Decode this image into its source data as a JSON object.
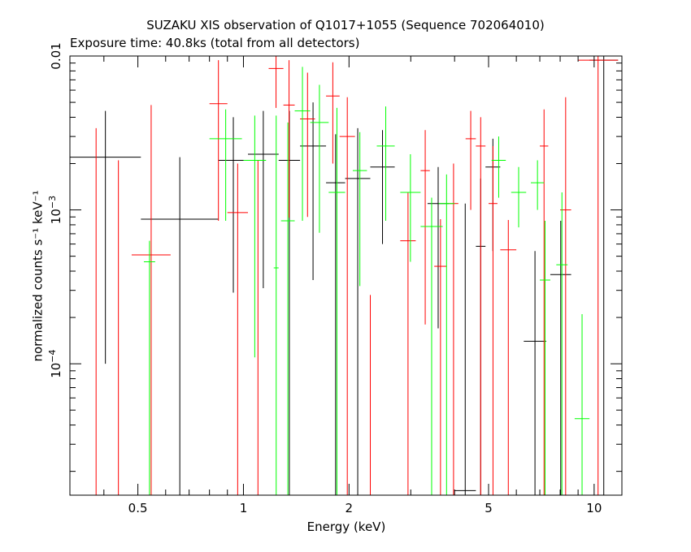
{
  "chart_data": {
    "type": "scatter",
    "title": "SUZAKU XIS observation of Q1017+1055 (Sequence 702064010)",
    "subtitle": "Exposure time: 40.8ks (total from all detectors)",
    "xlabel": "Energy (keV)",
    "ylabel": "normalized counts s⁻¹ keV⁻¹",
    "xscale": "log",
    "yscale": "log",
    "xlim": [
      0.32,
      12.0
    ],
    "ylim": [
      1.4e-05,
      0.01
    ],
    "grid": false,
    "x_ticks": [
      {
        "value": 0.5,
        "label": "0.5"
      },
      {
        "value": 1,
        "label": "1"
      },
      {
        "value": 2,
        "label": "2"
      },
      {
        "value": 5,
        "label": "5"
      },
      {
        "value": 10,
        "label": "10"
      }
    ],
    "y_ticks": [
      {
        "value": 0.0001,
        "base": "10",
        "exp": "−4"
      },
      {
        "value": 0.001,
        "base": "10",
        "exp": "−3"
      },
      {
        "value": 0.01,
        "label": "0.01"
      }
    ],
    "colors": {
      "series_0": "#000000",
      "series_1": "#ff0000",
      "series_2": "#00ff00"
    },
    "series": [
      {
        "color": "#000000",
        "points": [
          [
            0.32,
            0.51,
            0.0022,
            0.0001,
            0.0044
          ],
          [
            0.51,
            0.85,
            0.00087,
            1.4e-05,
            0.0022
          ],
          [
            0.85,
            1.03,
            0.0021,
            0.00029,
            0.004
          ],
          [
            1.03,
            1.26,
            0.0023,
            0.00031,
            0.0044
          ],
          [
            1.26,
            1.45,
            0.0021,
            1.4e-05,
            0.0044
          ],
          [
            1.45,
            1.72,
            0.0026,
            0.00035,
            0.005
          ],
          [
            1.72,
            1.95,
            0.0015,
            1.4e-05,
            0.0031
          ],
          [
            1.95,
            2.3,
            0.0016,
            1.4e-05,
            0.0034
          ],
          [
            2.3,
            2.7,
            0.0019,
            0.0006,
            0.0033
          ],
          [
            3.35,
            3.85,
            0.0011,
            0.00017,
            0.0019
          ],
          [
            4.0,
            4.6,
            1.5e-05,
            1.4e-05,
            0.0011
          ],
          [
            4.6,
            4.9,
            0.00058,
            1.4e-05,
            0.0016
          ],
          [
            4.9,
            5.4,
            0.0019,
            0.00054,
            0.0029
          ],
          [
            6.3,
            7.3,
            0.00014,
            1.4e-05,
            0.00054
          ],
          [
            7.5,
            8.6,
            0.00038,
            1.4e-05,
            0.00085
          ],
          [
            9.7,
            11.7,
            0.0094,
            1.4e-05,
            0.01
          ]
        ]
      },
      {
        "color": "#ff0000",
        "points": [
          [
            0.38,
            0.38,
            0.0034,
            1.4e-05,
            0.0034
          ],
          [
            0.44,
            0.44,
            0.0021,
            1.4e-05,
            0.0021
          ],
          [
            0.48,
            0.62,
            0.00051,
            1.4e-05,
            0.0048
          ],
          [
            0.8,
            0.9,
            0.0049,
            0.00085,
            0.0094
          ],
          [
            0.9,
            1.03,
            0.00096,
            1.4e-05,
            0.002
          ],
          [
            1.1,
            1.1,
            0.0021,
            1.4e-05,
            0.0021
          ],
          [
            1.18,
            1.3,
            0.0083,
            0.0046,
            0.01
          ],
          [
            1.3,
            1.4,
            0.0048,
            0.00089,
            0.0094
          ],
          [
            1.45,
            1.6,
            0.0039,
            0.0009,
            0.0078
          ],
          [
            1.72,
            1.88,
            0.0055,
            0.002,
            0.0091
          ],
          [
            1.88,
            2.08,
            0.003,
            1.4e-05,
            0.0054
          ],
          [
            2.3,
            2.3,
            0.00028,
            1.4e-05,
            0.00028
          ],
          [
            2.8,
            3.1,
            0.00063,
            1.4e-05,
            0.0013
          ],
          [
            3.2,
            3.4,
            0.0018,
            0.00018,
            0.0033
          ],
          [
            3.5,
            3.8,
            0.00043,
            1.4e-05,
            0.00087
          ],
          [
            3.85,
            4.1,
            0.0011,
            1.4e-05,
            0.002
          ],
          [
            4.3,
            4.6,
            0.0029,
            0.001,
            0.0044
          ],
          [
            4.6,
            4.9,
            0.0026,
            1.4e-05,
            0.004
          ],
          [
            5.0,
            5.3,
            0.0011,
            1.4e-05,
            0.0026
          ],
          [
            5.4,
            6.0,
            0.00055,
            1.4e-05,
            0.00086
          ],
          [
            7.0,
            7.4,
            0.0026,
            1.4e-05,
            0.0045
          ],
          [
            8.0,
            8.6,
            0.001,
            1.4e-05,
            0.0054
          ],
          [
            9.0,
            11.7,
            0.0094,
            1.4e-05,
            0.01
          ]
        ]
      },
      {
        "color": "#00ff00",
        "points": [
          [
            0.52,
            0.56,
            0.00046,
            1.4e-05,
            0.00063
          ],
          [
            0.8,
            0.99,
            0.0029,
            0.00085,
            0.0045
          ],
          [
            1.0,
            1.16,
            0.0021,
            0.00011,
            0.0041
          ],
          [
            1.22,
            1.26,
            0.00042,
            1.4e-05,
            0.0041
          ],
          [
            1.28,
            1.4,
            0.00085,
            1.4e-05,
            0.0037
          ],
          [
            1.4,
            1.55,
            0.0044,
            0.00085,
            0.0085
          ],
          [
            1.55,
            1.75,
            0.0037,
            0.00071,
            0.0065
          ],
          [
            1.75,
            1.95,
            0.0013,
            1.4e-05,
            0.0046
          ],
          [
            2.05,
            2.25,
            0.0018,
            0.00032,
            0.0032
          ],
          [
            2.4,
            2.7,
            0.0026,
            0.00085,
            0.0047
          ],
          [
            2.8,
            3.2,
            0.0013,
            0.00046,
            0.0023
          ],
          [
            3.2,
            3.7,
            0.00078,
            1.4e-05,
            0.0012
          ],
          [
            3.6,
            4.0,
            0.0011,
            1.4e-05,
            0.0017
          ],
          [
            5.1,
            5.6,
            0.0021,
            0.0012,
            0.003
          ],
          [
            5.8,
            6.4,
            0.0013,
            0.00077,
            0.0019
          ],
          [
            6.6,
            7.2,
            0.0015,
            0.001,
            0.0021
          ],
          [
            7.0,
            7.5,
            0.00035,
            1.4e-05,
            0.00085
          ],
          [
            7.8,
            8.4,
            0.00044,
            1.4e-05,
            0.0013
          ],
          [
            8.8,
            9.7,
            4.4e-05,
            1.4e-05,
            0.00021
          ]
        ]
      }
    ]
  }
}
